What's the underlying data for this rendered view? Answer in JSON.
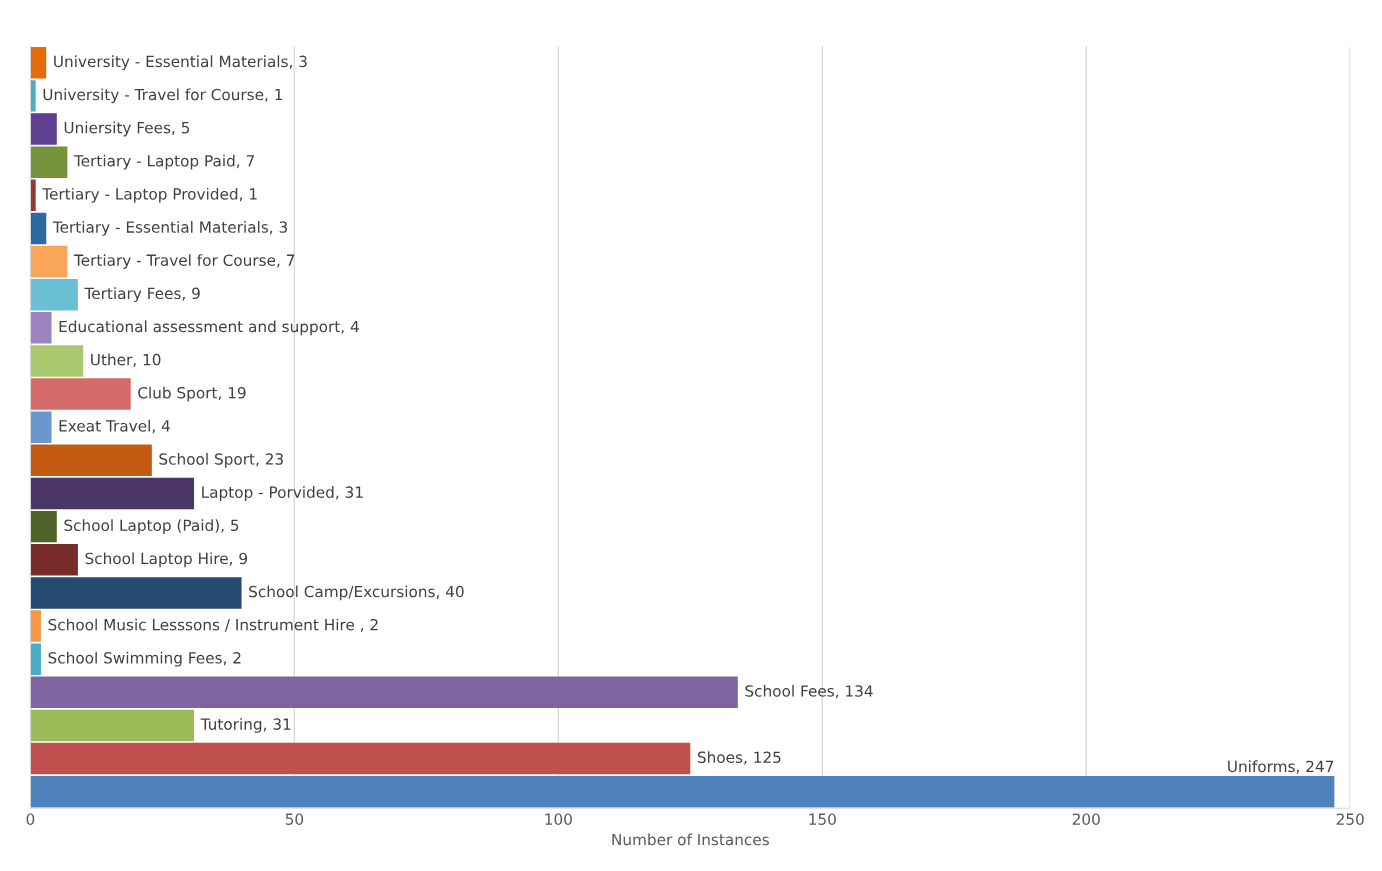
{
  "chart_data": {
    "type": "bar",
    "orientation": "horizontal",
    "xlabel": "Number of Instances",
    "categories": [
      null,
      null,
      null,
      null,
      null,
      null,
      null,
      null,
      null,
      null,
      null,
      null,
      null,
      null,
      null,
      null,
      null,
      null,
      null,
      null,
      null,
      null,
      null
    ],
    "values": [
      3,
      1,
      5,
      7,
      1,
      3,
      7,
      9,
      4,
      10,
      19,
      4,
      23,
      31,
      5,
      9,
      40,
      2,
      2,
      134,
      31,
      125,
      247
    ],
    "value_labels": [
      "University - Essential Materials, 3",
      "University - Travel for Course, 1",
      "Uniersity Fees, 5",
      "Tertiary - Laptop Paid, 7",
      "Tertiary - Laptop Provided, 1",
      "Tertiary - Essential Materials, 3",
      "Tertiary - Travel for Course, 7",
      "Tertiary Fees, 9",
      "Educational assessment and support, 4",
      "Uther, 10",
      "Club Sport, 19",
      "Exeat Travel, 4",
      "School Sport, 23",
      "Laptop - Porvided, 31",
      "School Laptop (Paid), 5",
      "School Laptop Hire, 9",
      "School Camp/Excursions, 40",
      "School Music Lesssons / Instrument Hire , 2",
      "School Swimming Fees, 2",
      "School Fees, 134",
      "Tutoring, 31",
      "Shoes, 125",
      "Uniforms, 247"
    ],
    "colors": [
      "#e46c0a",
      "#4bacc6",
      "#5f3f8f",
      "#77933c",
      "#943634",
      "#2c6aa0",
      "#f9a65a",
      "#6cc0d6",
      "#9c83bf",
      "#a9c96f",
      "#d46a6a",
      "#6b96d0",
      "#c55a11",
      "#4b3566",
      "#4f6228",
      "#772c2a",
      "#254b73",
      "#f79646",
      "#4bacc6",
      "#8064a2",
      "#9bbb59",
      "#c0504d",
      "#4f81bd"
    ],
    "xlim": [
      0,
      250
    ],
    "xticks": [
      0,
      50,
      100,
      150,
      200,
      250
    ],
    "grid": "x"
  }
}
